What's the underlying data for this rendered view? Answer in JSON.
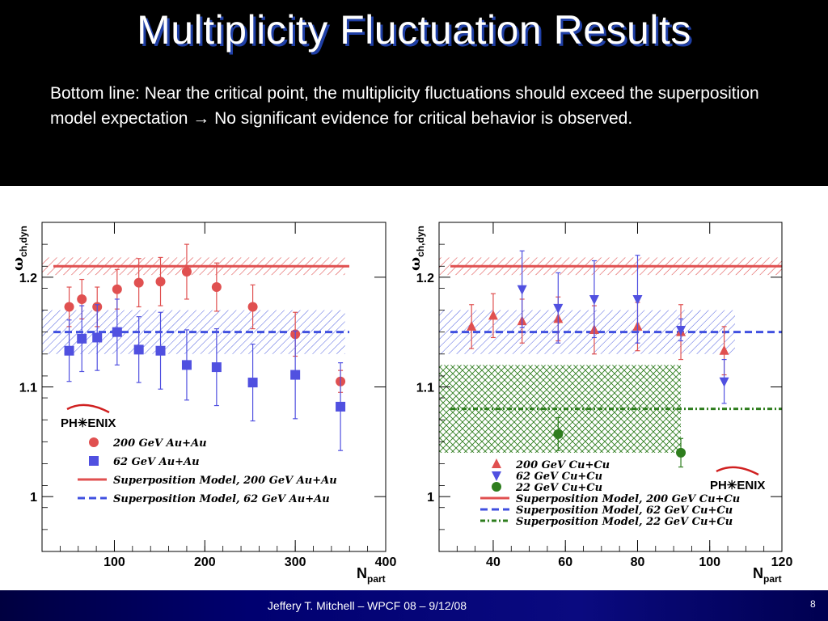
{
  "slide": {
    "title": "Multiplicity Fluctuation Results",
    "bottom_line_pre": "Bottom line: Near the critical point, the multiplicity fluctuations should exceed the superposition model expectation ",
    "arrow": "→",
    "bottom_line_post": " No significant evidence for critical behavior is observed.",
    "footer": "Jeffery T. Mitchell – WPCF 08 – 9/12/08",
    "page_number": "8"
  },
  "logo_text": "PH✳ENIX",
  "chart_data": [
    {
      "type": "scatter",
      "ylabel": "ωch,dyn",
      "ylabel_main": "ω",
      "ylabel_sub": "ch,dyn",
      "xlabel_main": "N",
      "xlabel_sub": "part",
      "xlim": [
        20,
        400
      ],
      "ylim": [
        0.95,
        1.25
      ],
      "x_ticks": [
        100,
        200,
        300,
        400
      ],
      "x_tick_labels": [
        "100",
        "200",
        "300",
        "400"
      ],
      "y_ticks": [
        1,
        1.1,
        1.2
      ],
      "y_tick_labels": [
        "1",
        "1.1",
        "1.2"
      ],
      "series": [
        {
          "name": "200 GeV Au+Au",
          "marker": "circle",
          "color": "#e05050",
          "x": [
            50,
            64,
            81,
            103,
            127,
            151,
            180,
            213,
            253,
            300,
            350
          ],
          "y": [
            1.173,
            1.18,
            1.173,
            1.189,
            1.195,
            1.196,
            1.205,
            1.191,
            1.173,
            1.148,
            1.105
          ],
          "err": [
            0.018,
            0.018,
            0.018,
            0.018,
            0.022,
            0.022,
            0.025,
            0.022,
            0.02,
            0.02,
            0.01
          ]
        },
        {
          "name": "62 GeV Au+Au",
          "marker": "square",
          "color": "#5050e0",
          "x": [
            50,
            64,
            81,
            103,
            127,
            151,
            180,
            213,
            253,
            300,
            350
          ],
          "y": [
            1.133,
            1.144,
            1.145,
            1.15,
            1.134,
            1.133,
            1.12,
            1.118,
            1.104,
            1.111,
            1.082
          ],
          "err": [
            0.028,
            0.03,
            0.03,
            0.03,
            0.03,
            0.035,
            0.032,
            0.035,
            0.035,
            0.04,
            0.04
          ]
        }
      ],
      "bands": [
        {
          "name": "Superposition Model, 200 GeV Au+Au",
          "style": "solid",
          "color": "#e05050",
          "y": 1.21,
          "band": [
            1.202,
            1.218
          ],
          "x_band": [
            20,
            355
          ]
        },
        {
          "name": "Superposition Model, 62 GeV Au+Au",
          "style": "dashed",
          "color": "#4050e0",
          "y": 1.15,
          "band": [
            1.13,
            1.17
          ],
          "x_band": [
            20,
            355
          ]
        }
      ]
    },
    {
      "type": "scatter",
      "ylabel": "ωch,dyn",
      "ylabel_main": "ω",
      "ylabel_sub": "ch,dyn",
      "xlabel_main": "N",
      "xlabel_sub": "part",
      "xlim": [
        25,
        120
      ],
      "ylim": [
        0.95,
        1.25
      ],
      "x_ticks": [
        40,
        60,
        80,
        100,
        120
      ],
      "x_tick_labels": [
        "40",
        "60",
        "80",
        "100",
        "120"
      ],
      "y_ticks": [
        1,
        1.1,
        1.2
      ],
      "y_tick_labels": [
        "1",
        "1.1",
        "1.2"
      ],
      "series": [
        {
          "name": "200 GeV Cu+Cu",
          "marker": "triangle-up",
          "color": "#e05050",
          "x": [
            34,
            40,
            48,
            58,
            68,
            80,
            92,
            104
          ],
          "y": [
            1.155,
            1.165,
            1.16,
            1.162,
            1.152,
            1.155,
            1.15,
            1.133
          ],
          "err": [
            0.02,
            0.02,
            0.02,
            0.02,
            0.022,
            0.022,
            0.025,
            0.022
          ]
        },
        {
          "name": "62 GeV Cu+Cu",
          "marker": "triangle-down",
          "color": "#5050e0",
          "x": [
            48,
            58,
            68,
            80,
            92,
            104
          ],
          "y": [
            1.189,
            1.172,
            1.18,
            1.18,
            1.152,
            1.105
          ],
          "err": [
            0.035,
            0.032,
            0.035,
            0.04,
            0.01,
            0.02
          ]
        },
        {
          "name": "22 GeV Cu+Cu",
          "marker": "circle",
          "color": "#2e7d1e",
          "x": [
            58,
            92
          ],
          "y": [
            1.057,
            1.04
          ],
          "err": [
            0.015,
            0.013
          ]
        }
      ],
      "bands": [
        {
          "name": "Superposition Model, 200 GeV Cu+Cu",
          "style": "solid",
          "color": "#e05050",
          "y": 1.21,
          "band": [
            1.202,
            1.218
          ],
          "x_band": [
            25,
            120
          ]
        },
        {
          "name": "Superposition Model, 62 GeV Cu+Cu",
          "style": "dashed",
          "color": "#4050e0",
          "y": 1.15,
          "band": [
            1.13,
            1.17
          ],
          "x_band": [
            25,
            107
          ]
        },
        {
          "name": "Superposition Model, 22 GeV Cu+Cu",
          "style": "dashdot",
          "color": "#2e7d1e",
          "y": 1.08,
          "band": [
            1.04,
            1.12
          ],
          "x_band": [
            25,
            92
          ]
        }
      ]
    }
  ]
}
